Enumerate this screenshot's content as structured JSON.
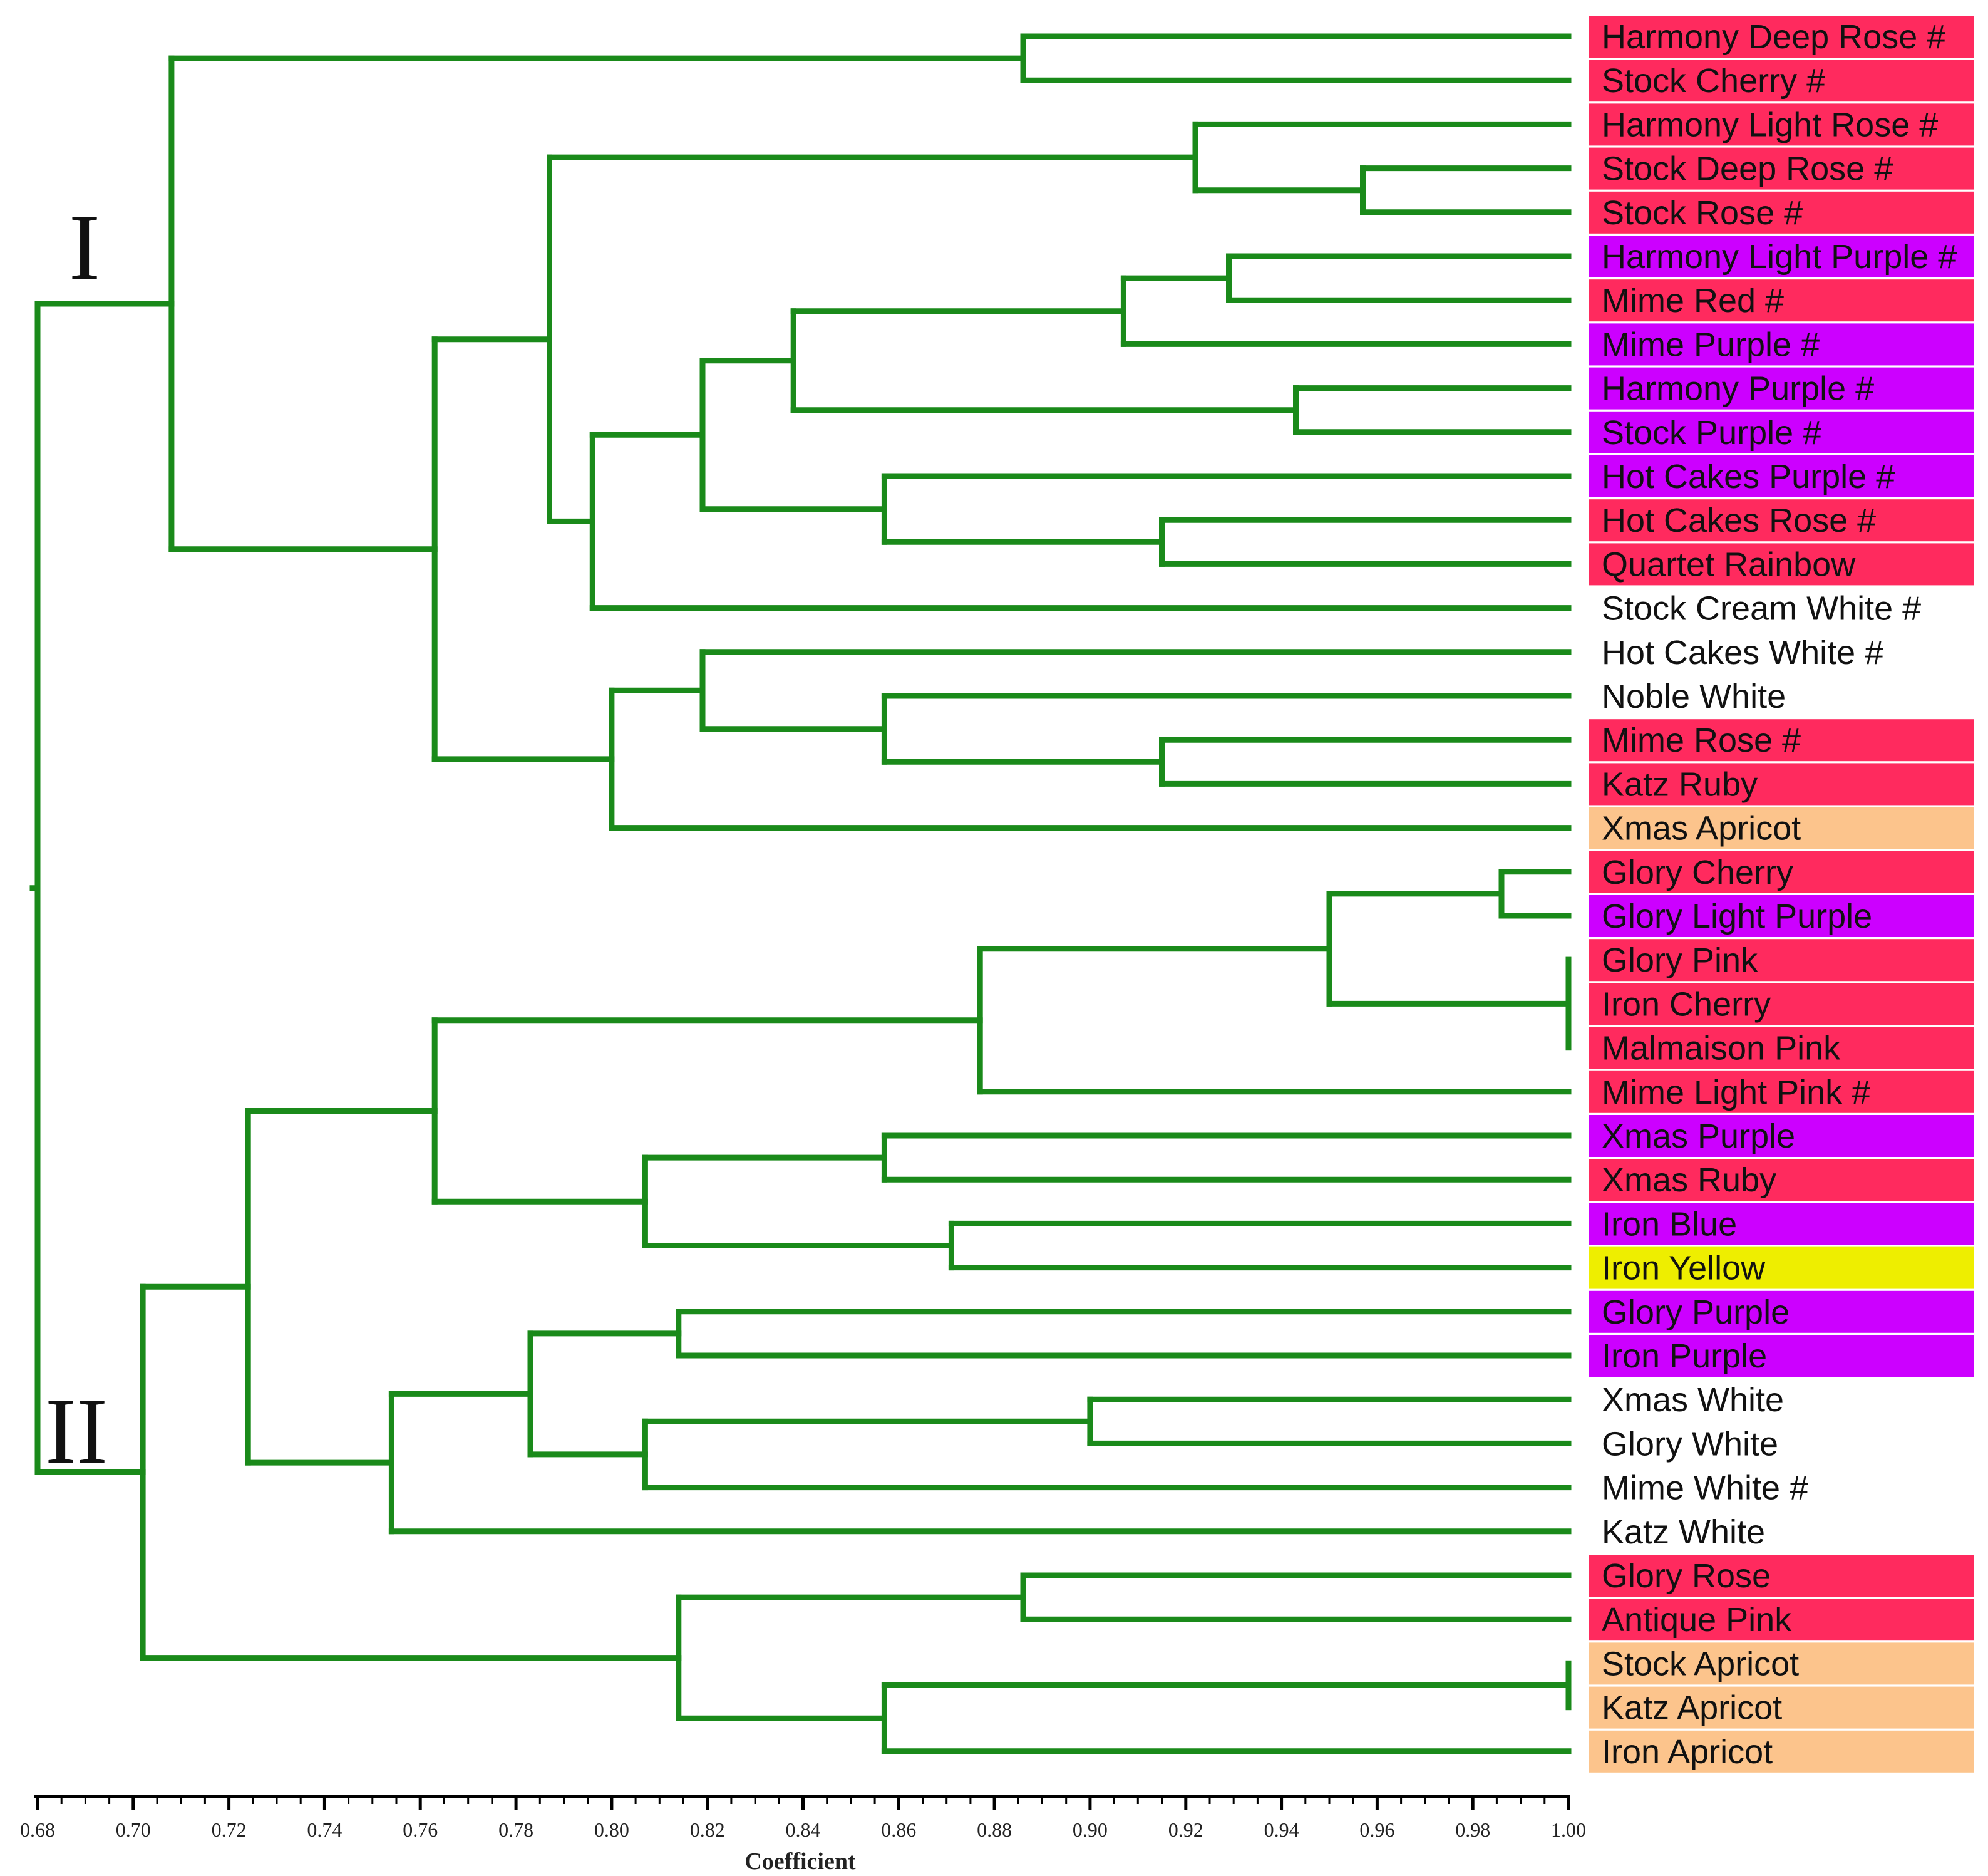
{
  "colors": {
    "branch": "#1a8a1a",
    "rose": "#ff2a5e",
    "purple": "#cc00ff",
    "apricot": "#fcc48c",
    "yellow": "#eeee00",
    "white": "#ffffff"
  },
  "clusters": {
    "I": "I",
    "II": "II"
  },
  "axis": {
    "title": "Coefficient",
    "min": 0.68,
    "max": 1.0,
    "ticks": [
      "0.68",
      "0.70",
      "0.72",
      "0.74",
      "0.76",
      "0.78",
      "0.80",
      "0.82",
      "0.84",
      "0.86",
      "0.88",
      "0.90",
      "0.92",
      "0.94",
      "0.96",
      "0.98",
      "1.00"
    ]
  },
  "leaves": [
    {
      "label": "Harmony Deep Rose #",
      "color": "rose"
    },
    {
      "label": "Stock Cherry #",
      "color": "rose"
    },
    {
      "label": "Harmony Light Rose #",
      "color": "rose"
    },
    {
      "label": "Stock Deep Rose #",
      "color": "rose"
    },
    {
      "label": "Stock Rose #",
      "color": "rose"
    },
    {
      "label": "Harmony Light Purple #",
      "color": "purple"
    },
    {
      "label": "Mime Red #",
      "color": "rose"
    },
    {
      "label": "Mime Purple #",
      "color": "purple"
    },
    {
      "label": "Harmony Purple #",
      "color": "purple"
    },
    {
      "label": "Stock Purple #",
      "color": "purple"
    },
    {
      "label": "Hot Cakes Purple #",
      "color": "purple"
    },
    {
      "label": "Hot Cakes Rose #",
      "color": "rose"
    },
    {
      "label": "Quartet Rainbow",
      "color": "rose"
    },
    {
      "label": "Stock Cream White #",
      "color": "white"
    },
    {
      "label": "Hot Cakes White #",
      "color": "white"
    },
    {
      "label": "Noble White",
      "color": "white"
    },
    {
      "label": "Mime Rose #",
      "color": "rose"
    },
    {
      "label": "Katz Ruby",
      "color": "rose"
    },
    {
      "label": "Xmas Apricot",
      "color": "apricot"
    },
    {
      "label": "Glory Cherry",
      "color": "rose"
    },
    {
      "label": "Glory Light Purple",
      "color": "purple"
    },
    {
      "label": "Glory Pink",
      "color": "rose"
    },
    {
      "label": "Iron Cherry",
      "color": "rose"
    },
    {
      "label": "Malmaison Pink",
      "color": "rose"
    },
    {
      "label": "Mime Light Pink #",
      "color": "rose"
    },
    {
      "label": "Xmas Purple",
      "color": "purple"
    },
    {
      "label": "Xmas Ruby",
      "color": "rose"
    },
    {
      "label": "Iron Blue",
      "color": "purple"
    },
    {
      "label": "Iron Yellow",
      "color": "yellow"
    },
    {
      "label": "Glory Purple",
      "color": "purple"
    },
    {
      "label": "Iron Purple",
      "color": "purple"
    },
    {
      "label": "Xmas White",
      "color": "white"
    },
    {
      "label": "Glory White",
      "color": "white"
    },
    {
      "label": "Mime White #",
      "color": "white"
    },
    {
      "label": "Katz White",
      "color": "white"
    },
    {
      "label": "Glory Rose",
      "color": "rose"
    },
    {
      "label": "Antique Pink",
      "color": "rose"
    },
    {
      "label": "Stock Apricot",
      "color": "apricot"
    },
    {
      "label": "Katz Apricot",
      "color": "apricot"
    },
    {
      "label": "Iron Apricot",
      "color": "apricot"
    }
  ],
  "tree": {
    "h": 0.68,
    "c": [
      {
        "h": 0.708,
        "c": [
          {
            "h": 0.886,
            "c": [
              0,
              1
            ]
          },
          {
            "h": 0.763,
            "c": [
              {
                "h": 0.787,
                "c": [
                  {
                    "h": 0.922,
                    "c": [
                      2,
                      {
                        "h": 0.957,
                        "c": [
                          3,
                          4
                        ]
                      }
                    ]
                  },
                  {
                    "h": 0.796,
                    "c": [
                      {
                        "h": 0.819,
                        "c": [
                          {
                            "h": 0.838,
                            "c": [
                              {
                                "h": 0.907,
                                "c": [
                                  {
                                    "h": 0.929,
                                    "c": [
                                      5,
                                      6
                                    ]
                                  },
                                  7
                                ]
                              },
                              {
                                "h": 0.943,
                                "c": [
                                  8,
                                  9
                                ]
                              }
                            ]
                          },
                          {
                            "h": 0.857,
                            "c": [
                              10,
                              {
                                "h": 0.915,
                                "c": [
                                  11,
                                  12
                                ]
                              }
                            ]
                          }
                        ]
                      },
                      13
                    ]
                  }
                ]
              },
              {
                "h": 0.8,
                "c": [
                  {
                    "h": 0.819,
                    "c": [
                      14,
                      {
                        "h": 0.857,
                        "c": [
                          15,
                          {
                            "h": 0.915,
                            "c": [
                              16,
                              17
                            ]
                          }
                        ]
                      }
                    ]
                  },
                  18
                ]
              }
            ]
          }
        ]
      },
      {
        "h": 0.702,
        "c": [
          {
            "h": 0.724,
            "c": [
              {
                "h": 0.763,
                "c": [
                  {
                    "h": 0.877,
                    "c": [
                      {
                        "h": 0.95,
                        "c": [
                          {
                            "h": 0.986,
                            "c": [
                              19,
                              20
                            ]
                          },
                          {
                            "h": 1.0,
                            "c": [
                              21,
                              22,
                              23
                            ]
                          }
                        ]
                      },
                      24
                    ]
                  },
                  {
                    "h": 0.807,
                    "c": [
                      {
                        "h": 0.857,
                        "c": [
                          25,
                          26
                        ]
                      },
                      {
                        "h": 0.871,
                        "c": [
                          27,
                          28
                        ]
                      }
                    ]
                  }
                ]
              },
              {
                "h": 0.754,
                "c": [
                  {
                    "h": 0.783,
                    "c": [
                      {
                        "h": 0.814,
                        "c": [
                          29,
                          30
                        ]
                      },
                      {
                        "h": 0.807,
                        "c": [
                          {
                            "h": 0.9,
                            "c": [
                              31,
                              32
                            ]
                          },
                          33
                        ]
                      }
                    ]
                  },
                  34
                ]
              }
            ]
          },
          {
            "h": 0.814,
            "c": [
              {
                "h": 0.886,
                "c": [
                  35,
                  36
                ]
              },
              {
                "h": 0.857,
                "c": [
                  {
                    "h": 1.0,
                    "c": [
                      37,
                      38
                    ]
                  },
                  39
                ]
              }
            ]
          }
        ]
      }
    ]
  }
}
